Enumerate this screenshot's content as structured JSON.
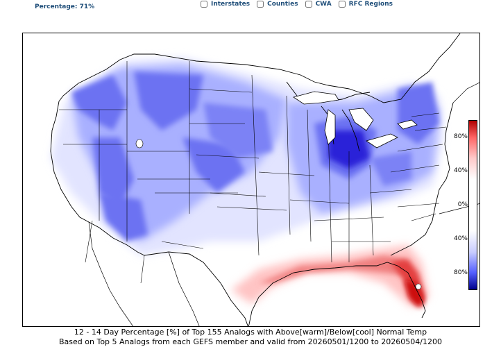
{
  "header": {
    "percentage_label": "Percentage: 71%"
  },
  "layer_toggles": [
    {
      "label": "Interstates",
      "checked": false
    },
    {
      "label": "Counties",
      "checked": false
    },
    {
      "label": "CWA",
      "checked": false
    },
    {
      "label": "RFC Regions",
      "checked": false
    }
  ],
  "colorbar": {
    "ticks": [
      "80%",
      "40%",
      "0%",
      "40%",
      "80%"
    ],
    "warm_color": "#c00000",
    "cool_color": "#00008b",
    "neutral_color": "#ffffff"
  },
  "caption": {
    "line1": "12 - 14 Day  Percentage [%] of Top 155 Analogs with Above[warm]/Below[cool] Normal Temp",
    "line2": "Based on Top 5 Analogs from each GEFS member and valid from 20260501/1200 to 20260504/1200"
  }
}
